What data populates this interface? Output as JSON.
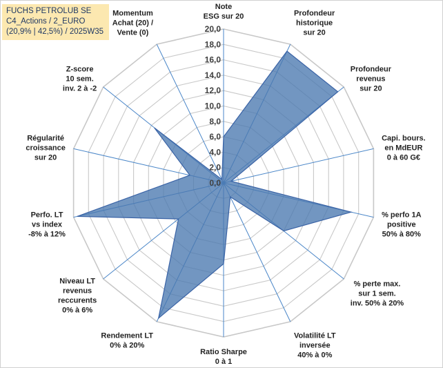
{
  "header": {
    "line1": "FUCHS PETROLUB SE",
    "line2": "C4_Actions / 2_EURO",
    "line3": "(20,9% | 42,5%) / 2025W35"
  },
  "chart_data": {
    "type": "radar",
    "rmin": 0,
    "rmax": 20,
    "tick_step": 2,
    "ticks": [
      "0,0",
      "2,0",
      "4,0",
      "6,0",
      "8,0",
      "10,0",
      "12,0",
      "14,0",
      "16,0",
      "18,0",
      "20,0"
    ],
    "axes": [
      [
        "Note",
        "ESG sur 20"
      ],
      [
        "Profondeur",
        "historique",
        "sur 20"
      ],
      [
        "Profondeur",
        "revenus",
        "sur 20"
      ],
      [
        "Capi. bours.",
        "en MdEUR",
        "0 à 60 G€"
      ],
      [
        "% perfo 1A",
        "positive",
        "50% à 80%"
      ],
      [
        "% perte max.",
        "sur 1 sem.",
        "inv. 50% à 20%"
      ],
      [
        "Volatilité LT",
        "inversée",
        "40% à 0%"
      ],
      [
        "Ratio Sharpe",
        "0 à 1"
      ],
      [
        "Rendement LT",
        "0% à 20%"
      ],
      [
        "Niveau LT",
        "revenus",
        "reccurents",
        "0% à 6%"
      ],
      [
        "Perfo. LT",
        "vs index",
        "-8% à 12%"
      ],
      [
        "Régularité",
        "croissance",
        "sur 20"
      ],
      [
        "Z-score",
        "10 sem.",
        "inv. 2 à -2"
      ],
      [
        "Momentum",
        "Achat (20) /",
        "Vente (0)"
      ]
    ],
    "series": [
      {
        "values": [
          6.0,
          19.0,
          19.0,
          1.0,
          17.0,
          10.0,
          2.0,
          10.5,
          19.5,
          7.5,
          19.5,
          4.5,
          11.5,
          0.5
        ],
        "fill": "#4a78b0",
        "stroke": "#3a63a6"
      }
    ],
    "grid_color": "#c8c8c8",
    "axis_line_color": "#4a86c8",
    "grid": true
  }
}
